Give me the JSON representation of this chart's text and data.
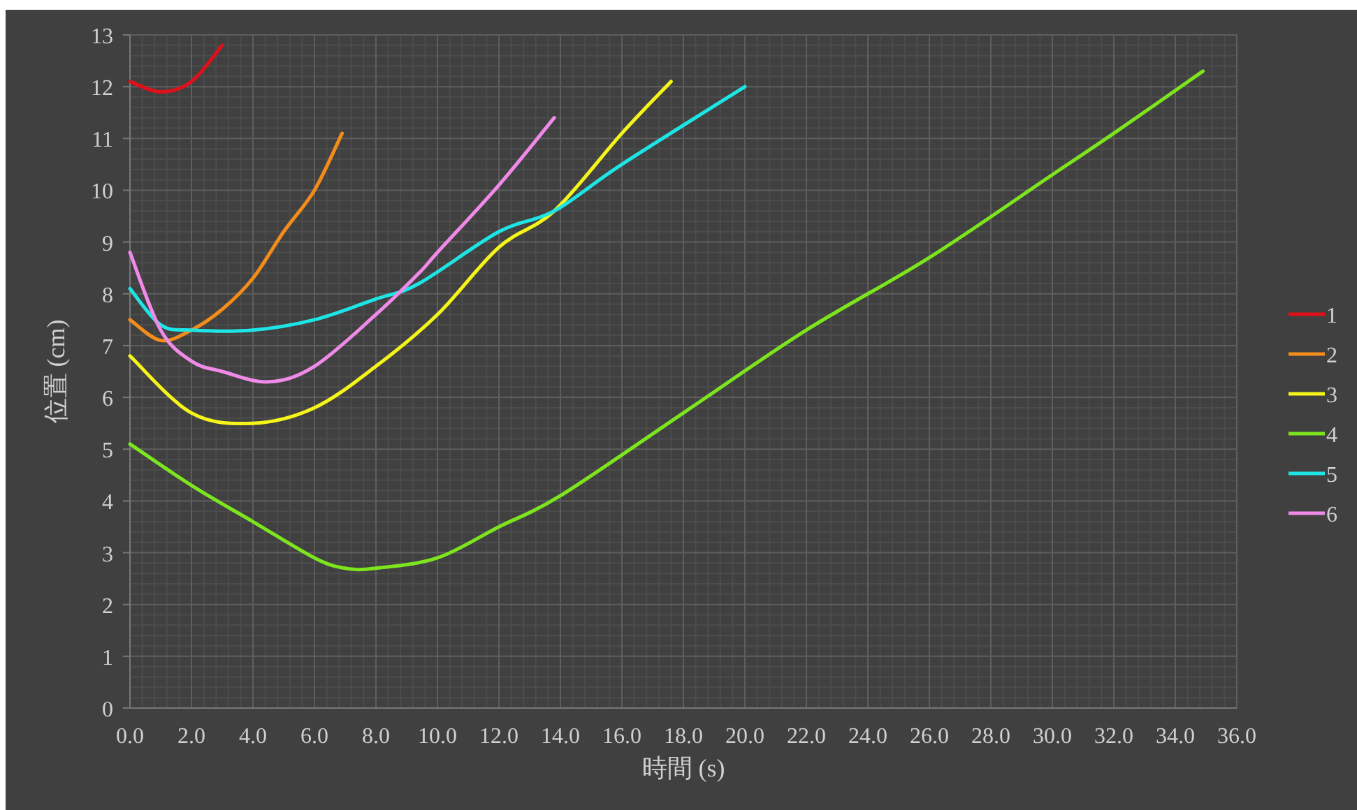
{
  "chart_data": {
    "type": "line",
    "xlabel": "時間 (s)",
    "ylabel": "位置 (cm)",
    "xlim": [
      0,
      36
    ],
    "ylim": [
      0,
      13
    ],
    "xticks": [
      {
        "value": 0,
        "label": "0.0"
      },
      {
        "value": 2,
        "label": "2.0"
      },
      {
        "value": 4,
        "label": "4.0"
      },
      {
        "value": 6,
        "label": "6.0"
      },
      {
        "value": 8,
        "label": "8.0"
      },
      {
        "value": 10,
        "label": "10.0"
      },
      {
        "value": 12,
        "label": "12.0"
      },
      {
        "value": 14,
        "label": "14.0"
      },
      {
        "value": 16,
        "label": "16.0"
      },
      {
        "value": 18,
        "label": "18.0"
      },
      {
        "value": 20,
        "label": "20.0"
      },
      {
        "value": 22,
        "label": "22.0"
      },
      {
        "value": 24,
        "label": "24.0"
      },
      {
        "value": 26,
        "label": "26.0"
      },
      {
        "value": 28,
        "label": "28.0"
      },
      {
        "value": 30,
        "label": "30.0"
      },
      {
        "value": 32,
        "label": "32.0"
      },
      {
        "value": 34,
        "label": "34.0"
      },
      {
        "value": 36,
        "label": "36.0"
      }
    ],
    "yticks": [
      0,
      1,
      2,
      3,
      4,
      5,
      6,
      7,
      8,
      9,
      10,
      11,
      12,
      13
    ],
    "grid": true,
    "legend": "right",
    "series": [
      {
        "name": "1",
        "color": "#e0101a",
        "x": [
          0,
          1,
          2,
          3
        ],
        "values": [
          12.1,
          11.9,
          12.1,
          12.8
        ]
      },
      {
        "name": "2",
        "color": "#f28c1a",
        "x": [
          0,
          1,
          2,
          3,
          4,
          5,
          6,
          6.9
        ],
        "values": [
          7.5,
          7.1,
          7.3,
          7.7,
          8.3,
          9.2,
          10.0,
          11.1
        ]
      },
      {
        "name": "3",
        "color": "#f5f51a",
        "x": [
          0,
          2,
          4,
          6,
          8,
          10,
          12,
          13.8,
          16,
          17.6
        ],
        "values": [
          6.8,
          5.7,
          5.5,
          5.8,
          6.6,
          7.6,
          8.9,
          9.6,
          11.1,
          12.1
        ]
      },
      {
        "name": "4",
        "color": "#7de51e",
        "x": [
          0,
          2,
          4,
          6,
          7,
          8,
          10,
          12,
          14,
          18,
          22,
          26,
          30,
          32,
          34.9
        ],
        "values": [
          5.1,
          4.3,
          3.6,
          2.9,
          2.7,
          2.7,
          2.9,
          3.5,
          4.1,
          5.7,
          7.3,
          8.7,
          10.3,
          11.1,
          12.3
        ]
      },
      {
        "name": "5",
        "color": "#1ee5e5",
        "x": [
          0,
          1,
          2,
          4,
          6,
          8,
          9.4,
          12,
          13.8,
          16,
          20
        ],
        "values": [
          8.1,
          7.4,
          7.3,
          7.3,
          7.5,
          7.9,
          8.2,
          9.2,
          9.6,
          10.5,
          12.0
        ]
      },
      {
        "name": "6",
        "color": "#f08ae8",
        "x": [
          0,
          1,
          2,
          3,
          4.5,
          6,
          8,
          9.4,
          10,
          12,
          13.8
        ],
        "values": [
          8.8,
          7.3,
          6.7,
          6.5,
          6.3,
          6.6,
          7.6,
          8.4,
          8.8,
          10.1,
          11.4
        ]
      }
    ]
  }
}
